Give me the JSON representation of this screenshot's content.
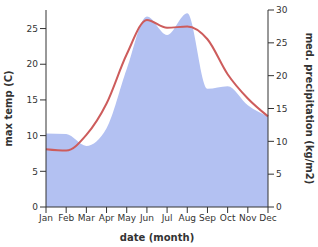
{
  "chart_data": {
    "type": "line",
    "xlabel": "date (month)",
    "ylabel": "max temp (C)",
    "y2label": "med. precipitation (kg/m2)",
    "categories": [
      "Jan",
      "Feb",
      "Mar",
      "Apr",
      "May",
      "Jun",
      "Jul",
      "Aug",
      "Sep",
      "Oct",
      "Nov",
      "Dec"
    ],
    "ylim": [
      0,
      27.6
    ],
    "yticks": [
      0,
      5,
      10,
      15,
      20,
      25
    ],
    "y2lim": [
      0,
      30
    ],
    "y2ticks": [
      0,
      5,
      10,
      15,
      20,
      25,
      30
    ],
    "grid": false,
    "series": [
      {
        "type": "area",
        "axis": "y2",
        "color": "#b3c1f2",
        "values": [
          11.2,
          11.1,
          9.3,
          12,
          21,
          29,
          26.2,
          29.5,
          18,
          18.4,
          15.5,
          13.8
        ]
      },
      {
        "type": "line",
        "color": "#cd5c5c",
        "values": [
          8.1,
          7.9,
          10.1,
          14.5,
          21.4,
          26.2,
          25.1,
          25.3,
          23.5,
          18.6,
          15.2,
          12.7
        ]
      }
    ]
  }
}
